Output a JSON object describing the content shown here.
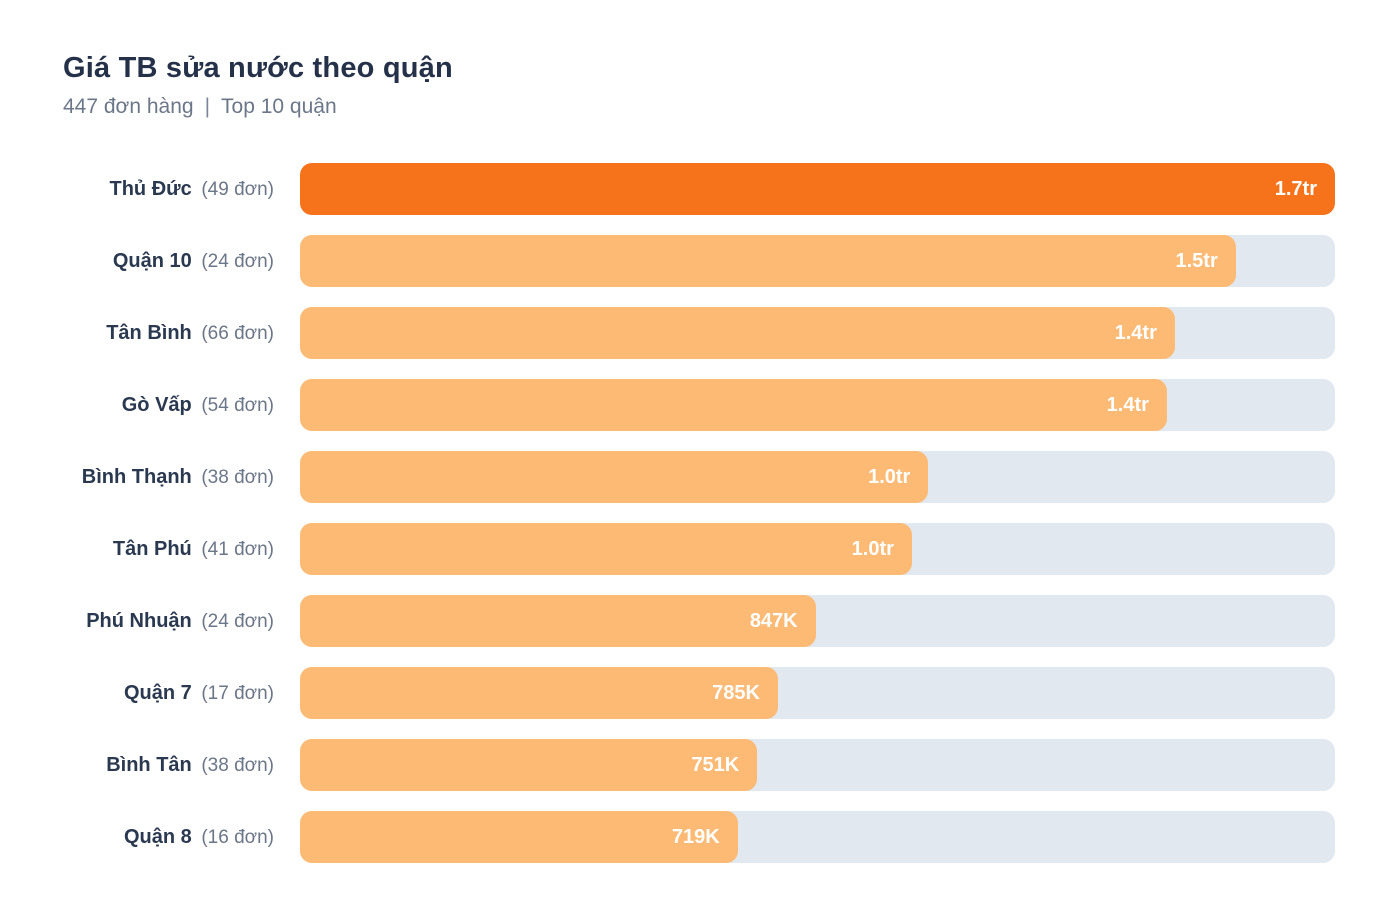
{
  "header": {
    "title": "Giá TB sửa nước theo quận",
    "orders_label": "447 đơn hàng",
    "separator": "|",
    "scope_label": "Top 10 quận"
  },
  "colors": {
    "background": "#FFFFFF",
    "title": "#243149",
    "subtitle": "#6B7789",
    "district_label": "#2A3950",
    "count_label": "#6B7689",
    "bar_highlight": "#F6731B",
    "bar_normal": "#FDBA74",
    "track": "#E2E8F0",
    "value_text": "#FFFFFF"
  },
  "chart_data": {
    "type": "bar",
    "orientation": "horizontal",
    "title": "Giá TB sửa nước theo quận",
    "subtitle": "447 đơn hàng | Top 10 quận",
    "unit": "VND (tr = million, K = thousand)",
    "legend": "none",
    "grid": "off",
    "value_axis_range_k": [
      0,
      1700
    ],
    "max_value_k": 1700,
    "total_orders": 447,
    "rows": [
      {
        "district": "Thủ Đức",
        "orders": 49,
        "count_label": "(49 đơn)",
        "value_label": "1.7tr",
        "value_k": 1700,
        "highlight": true
      },
      {
        "district": "Quận 10",
        "orders": 24,
        "count_label": "(24 đơn)",
        "value_label": "1.5tr",
        "value_k": 1537,
        "highlight": false
      },
      {
        "district": "Tân Bình",
        "orders": 66,
        "count_label": "(66 đơn)",
        "value_label": "1.4tr",
        "value_k": 1437,
        "highlight": false
      },
      {
        "district": "Gò Vấp",
        "orders": 54,
        "count_label": "(54 đơn)",
        "value_label": "1.4tr",
        "value_k": 1424,
        "highlight": false
      },
      {
        "district": "Bình Thạnh",
        "orders": 38,
        "count_label": "(38 đơn)",
        "value_label": "1.0tr",
        "value_k": 1032,
        "highlight": false
      },
      {
        "district": "Tân Phú",
        "orders": 41,
        "count_label": "(41 đơn)",
        "value_label": "1.0tr",
        "value_k": 1005,
        "highlight": false
      },
      {
        "district": "Phú Nhuận",
        "orders": 24,
        "count_label": "(24 đơn)",
        "value_label": "847K",
        "value_k": 847,
        "highlight": false
      },
      {
        "district": "Quận 7",
        "orders": 17,
        "count_label": "(17 đơn)",
        "value_label": "785K",
        "value_k": 785,
        "highlight": false
      },
      {
        "district": "Bình Tân",
        "orders": 38,
        "count_label": "(38 đơn)",
        "value_label": "751K",
        "value_k": 751,
        "highlight": false
      },
      {
        "district": "Quận 8",
        "orders": 16,
        "count_label": "(16 đơn)",
        "value_label": "719K",
        "value_k": 719,
        "highlight": false
      }
    ]
  }
}
